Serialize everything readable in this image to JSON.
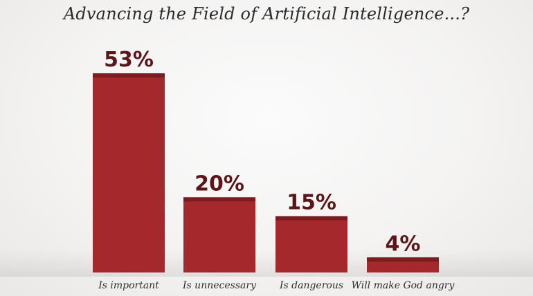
{
  "chart_data": {
    "type": "bar",
    "title": "Advancing the Field of Artificial Intelligence...?",
    "categories": [
      "Is important",
      "Is unnecessary",
      "Is dangerous",
      "Will make God angry"
    ],
    "values": [
      53,
      20,
      15,
      4
    ],
    "value_labels": [
      "53%",
      "20%",
      "15%",
      "4%"
    ],
    "xlabel": "",
    "ylabel": "",
    "ylim": [
      0,
      53
    ],
    "grid": false,
    "colors": {
      "bar": "#a4282c",
      "bar_top": "#7a1d20",
      "value_text": "#5a1618"
    }
  }
}
